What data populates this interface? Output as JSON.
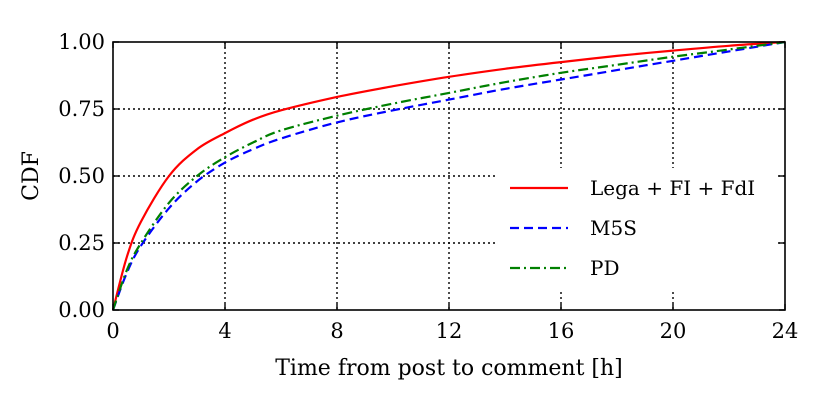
{
  "chart_data": {
    "type": "line",
    "xlabel": "Time from post to comment [h]",
    "ylabel": "CDF",
    "xlim": [
      0,
      24
    ],
    "ylim": [
      0,
      1
    ],
    "xticks": [
      0,
      4,
      8,
      12,
      16,
      20,
      24
    ],
    "yticks": [
      0.0,
      0.25,
      0.5,
      0.75,
      1.0
    ],
    "xtick_labels": [
      "0",
      "4",
      "8",
      "12",
      "16",
      "20",
      "24"
    ],
    "ytick_labels": [
      "0.00",
      "0.25",
      "0.50",
      "0.75",
      "1.00"
    ],
    "grid": true,
    "legend_position": "center-right",
    "x": [
      0,
      0.5,
      1,
      2,
      3,
      4,
      5,
      6,
      8,
      10,
      12,
      14,
      16,
      18,
      20,
      22,
      24
    ],
    "series": [
      {
        "name": "Lega + FI + FdI",
        "color": "#ff0000",
        "line_style": "solid",
        "values": [
          0,
          0.2,
          0.33,
          0.5,
          0.6,
          0.66,
          0.71,
          0.745,
          0.795,
          0.835,
          0.87,
          0.9,
          0.925,
          0.948,
          0.968,
          0.986,
          1.0
        ]
      },
      {
        "name": "M5S",
        "color": "#0000ff",
        "line_style": "dashed",
        "values": [
          0,
          0.14,
          0.24,
          0.38,
          0.48,
          0.55,
          0.6,
          0.64,
          0.7,
          0.745,
          0.785,
          0.825,
          0.86,
          0.895,
          0.93,
          0.965,
          1.0
        ]
      },
      {
        "name": "PD",
        "color": "#008000",
        "line_style": "dashdot",
        "values": [
          0,
          0.15,
          0.25,
          0.4,
          0.5,
          0.57,
          0.625,
          0.67,
          0.725,
          0.77,
          0.81,
          0.85,
          0.885,
          0.915,
          0.945,
          0.972,
          1.0
        ]
      }
    ]
  }
}
